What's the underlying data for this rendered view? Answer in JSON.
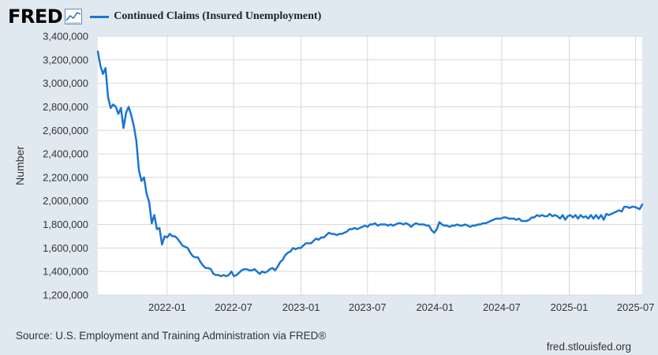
{
  "logo_text": "FRED",
  "logo_icon": "line-chart-icon",
  "source_text": "Source: U.S. Employment and Training Administration via FRED®",
  "site_text": "fred.stlouisfed.org",
  "colors": {
    "series": "#1a75d2",
    "background": "#e1e9f0",
    "plot": "#ffffff",
    "grid": "#d8d8d8"
  },
  "chart_data": {
    "type": "line",
    "title": "",
    "xlabel": "",
    "ylabel": "Number",
    "x_range": [
      "2021-06-26",
      "2025-07-19"
    ],
    "ylim": [
      1200000,
      3400000
    ],
    "yticks": [
      1200000,
      1400000,
      1600000,
      1800000,
      2000000,
      2200000,
      2400000,
      2600000,
      2800000,
      3000000,
      3200000,
      3400000
    ],
    "ytick_labels": [
      "1,200,000",
      "1,400,000",
      "1,600,000",
      "1,800,000",
      "2,000,000",
      "2,200,000",
      "2,400,000",
      "2,600,000",
      "2,800,000",
      "3,000,000",
      "3,200,000",
      "3,400,000"
    ],
    "xticks": [
      "2022-01-01",
      "2022-07-01",
      "2023-01-01",
      "2023-07-01",
      "2024-01-01",
      "2024-07-01",
      "2025-01-01",
      "2025-07-01"
    ],
    "xtick_labels": [
      "2022-01",
      "2022-07",
      "2023-01",
      "2023-07",
      "2024-01",
      "2024-07",
      "2025-01",
      "2025-07"
    ],
    "grid": true,
    "legend_position": "top",
    "series": [
      {
        "name": "Continued Claims (Insured Unemployment)",
        "points": [
          [
            "2021-06-26",
            3270000
          ],
          [
            "2021-07-03",
            3150000
          ],
          [
            "2021-07-10",
            3080000
          ],
          [
            "2021-07-17",
            3130000
          ],
          [
            "2021-07-24",
            2880000
          ],
          [
            "2021-07-31",
            2790000
          ],
          [
            "2021-08-07",
            2820000
          ],
          [
            "2021-08-14",
            2800000
          ],
          [
            "2021-08-21",
            2740000
          ],
          [
            "2021-08-28",
            2790000
          ],
          [
            "2021-09-04",
            2620000
          ],
          [
            "2021-09-11",
            2750000
          ],
          [
            "2021-09-18",
            2800000
          ],
          [
            "2021-09-25",
            2730000
          ],
          [
            "2021-10-02",
            2640000
          ],
          [
            "2021-10-09",
            2510000
          ],
          [
            "2021-10-16",
            2260000
          ],
          [
            "2021-10-23",
            2170000
          ],
          [
            "2021-10-30",
            2200000
          ],
          [
            "2021-11-06",
            2060000
          ],
          [
            "2021-11-13",
            1990000
          ],
          [
            "2021-11-20",
            1810000
          ],
          [
            "2021-11-27",
            1880000
          ],
          [
            "2021-12-04",
            1760000
          ],
          [
            "2021-12-11",
            1770000
          ],
          [
            "2021-12-18",
            1630000
          ],
          [
            "2021-12-25",
            1700000
          ],
          [
            "2022-01-01",
            1690000
          ],
          [
            "2022-01-08",
            1720000
          ],
          [
            "2022-01-15",
            1700000
          ],
          [
            "2022-01-22",
            1700000
          ],
          [
            "2022-01-29",
            1680000
          ],
          [
            "2022-02-05",
            1650000
          ],
          [
            "2022-02-12",
            1620000
          ],
          [
            "2022-02-19",
            1610000
          ],
          [
            "2022-02-26",
            1600000
          ],
          [
            "2022-03-05",
            1560000
          ],
          [
            "2022-03-12",
            1530000
          ],
          [
            "2022-03-19",
            1520000
          ],
          [
            "2022-03-26",
            1520000
          ],
          [
            "2022-04-02",
            1480000
          ],
          [
            "2022-04-09",
            1450000
          ],
          [
            "2022-04-16",
            1430000
          ],
          [
            "2022-04-23",
            1430000
          ],
          [
            "2022-04-30",
            1420000
          ],
          [
            "2022-05-07",
            1380000
          ],
          [
            "2022-05-14",
            1370000
          ],
          [
            "2022-05-21",
            1370000
          ],
          [
            "2022-05-28",
            1360000
          ],
          [
            "2022-06-04",
            1370000
          ],
          [
            "2022-06-11",
            1360000
          ],
          [
            "2022-06-18",
            1370000
          ],
          [
            "2022-06-25",
            1400000
          ],
          [
            "2022-07-02",
            1360000
          ],
          [
            "2022-07-09",
            1370000
          ],
          [
            "2022-07-16",
            1390000
          ],
          [
            "2022-07-23",
            1410000
          ],
          [
            "2022-07-30",
            1420000
          ],
          [
            "2022-08-06",
            1420000
          ],
          [
            "2022-08-13",
            1410000
          ],
          [
            "2022-08-20",
            1410000
          ],
          [
            "2022-08-27",
            1420000
          ],
          [
            "2022-09-03",
            1400000
          ],
          [
            "2022-09-10",
            1380000
          ],
          [
            "2022-09-17",
            1400000
          ],
          [
            "2022-09-24",
            1390000
          ],
          [
            "2022-10-01",
            1400000
          ],
          [
            "2022-10-08",
            1420000
          ],
          [
            "2022-10-15",
            1430000
          ],
          [
            "2022-10-22",
            1410000
          ],
          [
            "2022-10-29",
            1440000
          ],
          [
            "2022-11-05",
            1480000
          ],
          [
            "2022-11-12",
            1500000
          ],
          [
            "2022-11-19",
            1540000
          ],
          [
            "2022-11-26",
            1560000
          ],
          [
            "2022-12-03",
            1570000
          ],
          [
            "2022-12-10",
            1600000
          ],
          [
            "2022-12-17",
            1590000
          ],
          [
            "2022-12-24",
            1600000
          ],
          [
            "2022-12-31",
            1600000
          ],
          [
            "2023-01-07",
            1620000
          ],
          [
            "2023-01-14",
            1640000
          ],
          [
            "2023-01-21",
            1640000
          ],
          [
            "2023-01-28",
            1640000
          ],
          [
            "2023-02-04",
            1660000
          ],
          [
            "2023-02-11",
            1680000
          ],
          [
            "2023-02-18",
            1670000
          ],
          [
            "2023-02-25",
            1690000
          ],
          [
            "2023-03-04",
            1690000
          ],
          [
            "2023-03-11",
            1710000
          ],
          [
            "2023-03-18",
            1730000
          ],
          [
            "2023-03-25",
            1720000
          ],
          [
            "2023-04-01",
            1720000
          ],
          [
            "2023-04-08",
            1710000
          ],
          [
            "2023-04-15",
            1720000
          ],
          [
            "2023-04-22",
            1720000
          ],
          [
            "2023-04-29",
            1730000
          ],
          [
            "2023-05-06",
            1740000
          ],
          [
            "2023-05-13",
            1760000
          ],
          [
            "2023-05-20",
            1760000
          ],
          [
            "2023-05-27",
            1770000
          ],
          [
            "2023-06-03",
            1760000
          ],
          [
            "2023-06-10",
            1770000
          ],
          [
            "2023-06-17",
            1780000
          ],
          [
            "2023-06-24",
            1790000
          ],
          [
            "2023-07-01",
            1780000
          ],
          [
            "2023-07-08",
            1800000
          ],
          [
            "2023-07-15",
            1800000
          ],
          [
            "2023-07-22",
            1810000
          ],
          [
            "2023-07-29",
            1790000
          ],
          [
            "2023-08-05",
            1800000
          ],
          [
            "2023-08-12",
            1800000
          ],
          [
            "2023-08-19",
            1800000
          ],
          [
            "2023-08-26",
            1790000
          ],
          [
            "2023-09-02",
            1800000
          ],
          [
            "2023-09-09",
            1790000
          ],
          [
            "2023-09-16",
            1800000
          ],
          [
            "2023-09-23",
            1810000
          ],
          [
            "2023-09-30",
            1810000
          ],
          [
            "2023-10-07",
            1800000
          ],
          [
            "2023-10-14",
            1810000
          ],
          [
            "2023-10-21",
            1800000
          ],
          [
            "2023-10-28",
            1780000
          ],
          [
            "2023-11-04",
            1800000
          ],
          [
            "2023-11-11",
            1810000
          ],
          [
            "2023-11-18",
            1800000
          ],
          [
            "2023-11-25",
            1800000
          ],
          [
            "2023-12-02",
            1800000
          ],
          [
            "2023-12-09",
            1790000
          ],
          [
            "2023-12-16",
            1790000
          ],
          [
            "2023-12-23",
            1750000
          ],
          [
            "2023-12-30",
            1730000
          ],
          [
            "2024-01-06",
            1760000
          ],
          [
            "2024-01-13",
            1820000
          ],
          [
            "2024-01-20",
            1800000
          ],
          [
            "2024-01-27",
            1790000
          ],
          [
            "2024-02-03",
            1790000
          ],
          [
            "2024-02-10",
            1780000
          ],
          [
            "2024-02-17",
            1790000
          ],
          [
            "2024-02-24",
            1790000
          ],
          [
            "2024-03-02",
            1800000
          ],
          [
            "2024-03-09",
            1790000
          ],
          [
            "2024-03-16",
            1790000
          ],
          [
            "2024-03-23",
            1800000
          ],
          [
            "2024-03-30",
            1790000
          ],
          [
            "2024-04-06",
            1780000
          ],
          [
            "2024-04-13",
            1790000
          ],
          [
            "2024-04-20",
            1790000
          ],
          [
            "2024-04-27",
            1800000
          ],
          [
            "2024-05-04",
            1800000
          ],
          [
            "2024-05-11",
            1810000
          ],
          [
            "2024-05-18",
            1810000
          ],
          [
            "2024-05-25",
            1820000
          ],
          [
            "2024-06-01",
            1830000
          ],
          [
            "2024-06-08",
            1840000
          ],
          [
            "2024-06-15",
            1850000
          ],
          [
            "2024-06-22",
            1850000
          ],
          [
            "2024-06-29",
            1850000
          ],
          [
            "2024-07-06",
            1860000
          ],
          [
            "2024-07-13",
            1860000
          ],
          [
            "2024-07-20",
            1850000
          ],
          [
            "2024-07-27",
            1850000
          ],
          [
            "2024-08-03",
            1850000
          ],
          [
            "2024-08-10",
            1840000
          ],
          [
            "2024-08-17",
            1850000
          ],
          [
            "2024-08-24",
            1830000
          ],
          [
            "2024-08-31",
            1830000
          ],
          [
            "2024-09-07",
            1830000
          ],
          [
            "2024-09-14",
            1840000
          ],
          [
            "2024-09-21",
            1860000
          ],
          [
            "2024-09-28",
            1860000
          ],
          [
            "2024-10-05",
            1880000
          ],
          [
            "2024-10-12",
            1870000
          ],
          [
            "2024-10-19",
            1880000
          ],
          [
            "2024-10-26",
            1870000
          ],
          [
            "2024-11-02",
            1870000
          ],
          [
            "2024-11-09",
            1890000
          ],
          [
            "2024-11-16",
            1870000
          ],
          [
            "2024-11-23",
            1880000
          ],
          [
            "2024-11-30",
            1870000
          ],
          [
            "2024-12-07",
            1850000
          ],
          [
            "2024-12-14",
            1880000
          ],
          [
            "2024-12-21",
            1840000
          ],
          [
            "2024-12-28",
            1870000
          ],
          [
            "2025-01-04",
            1880000
          ],
          [
            "2025-01-11",
            1860000
          ],
          [
            "2025-01-18",
            1880000
          ],
          [
            "2025-01-25",
            1850000
          ],
          [
            "2025-02-01",
            1880000
          ],
          [
            "2025-02-08",
            1860000
          ],
          [
            "2025-02-15",
            1870000
          ],
          [
            "2025-02-22",
            1850000
          ],
          [
            "2025-03-01",
            1880000
          ],
          [
            "2025-03-08",
            1850000
          ],
          [
            "2025-03-15",
            1880000
          ],
          [
            "2025-03-22",
            1850000
          ],
          [
            "2025-03-29",
            1880000
          ],
          [
            "2025-04-05",
            1840000
          ],
          [
            "2025-04-12",
            1890000
          ],
          [
            "2025-04-19",
            1880000
          ],
          [
            "2025-04-26",
            1890000
          ],
          [
            "2025-05-03",
            1900000
          ],
          [
            "2025-05-10",
            1910000
          ],
          [
            "2025-05-17",
            1920000
          ],
          [
            "2025-05-24",
            1910000
          ],
          [
            "2025-05-31",
            1950000
          ],
          [
            "2025-06-07",
            1950000
          ],
          [
            "2025-06-14",
            1940000
          ],
          [
            "2025-06-21",
            1950000
          ],
          [
            "2025-06-28",
            1950000
          ],
          [
            "2025-07-05",
            1940000
          ],
          [
            "2025-07-12",
            1930000
          ],
          [
            "2025-07-19",
            1970000
          ]
        ]
      }
    ]
  }
}
